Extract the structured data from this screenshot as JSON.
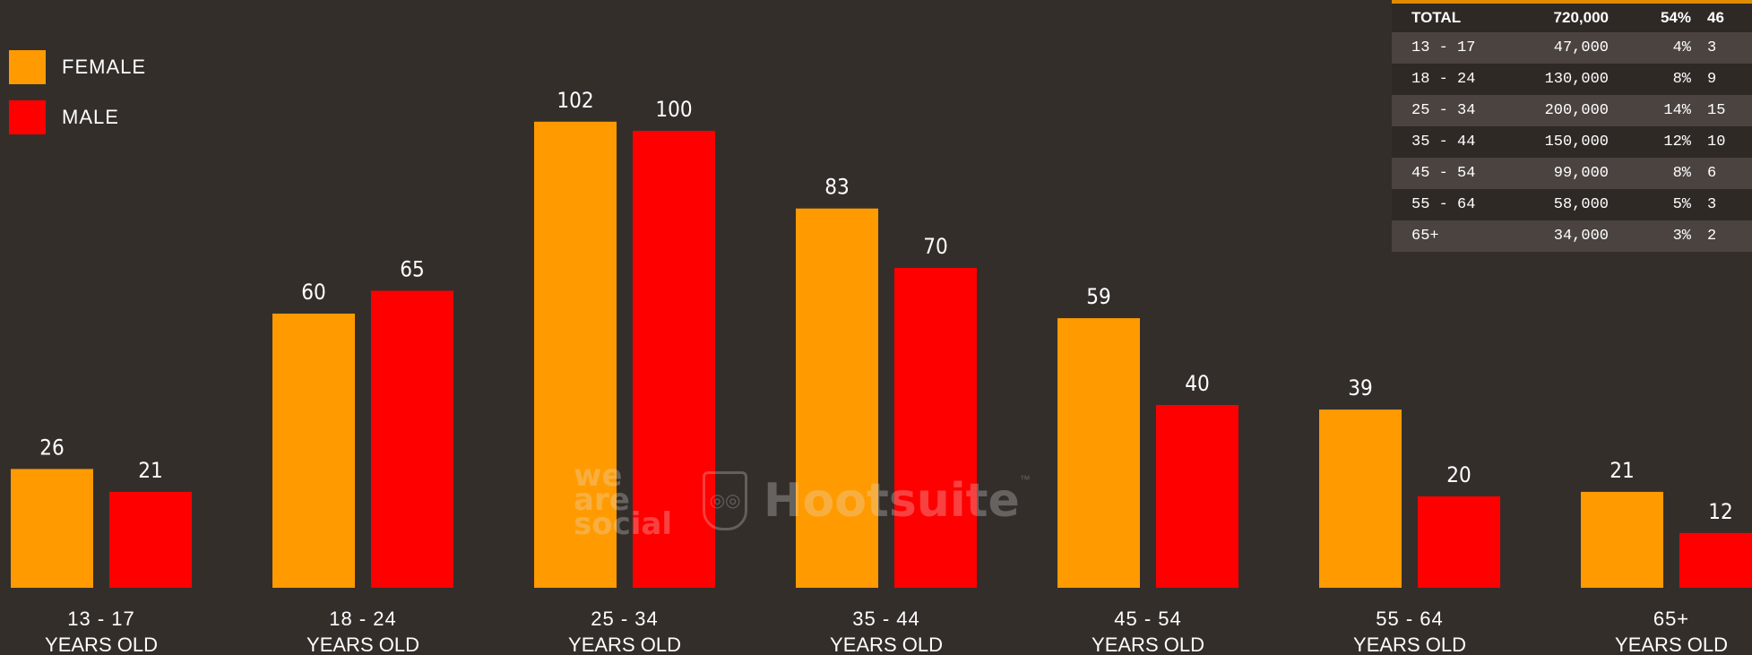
{
  "legend": {
    "female_label": "FEMALE",
    "male_label": "MALE",
    "female_color": "#ff9a00",
    "male_color": "#ff0000"
  },
  "chart_data": {
    "type": "bar",
    "categories": [
      "13 - 17",
      "18 - 24",
      "25 - 34",
      "35 - 44",
      "45 - 54",
      "55 - 64",
      "65+"
    ],
    "category_sublabel": "YEARS OLD",
    "series": [
      {
        "name": "FEMALE",
        "color": "#ff9a00",
        "values": [
          26,
          60,
          102,
          83,
          59,
          39,
          21
        ]
      },
      {
        "name": "MALE",
        "color": "#ff0000",
        "values": [
          21,
          65,
          100,
          70,
          40,
          20,
          12
        ]
      }
    ],
    "title": "",
    "xlabel": "",
    "ylabel": "",
    "ylim": [
      0,
      102
    ],
    "grid": false,
    "legend_position": "top-left"
  },
  "table": {
    "header": [
      "TOTAL",
      "720,000",
      "54%",
      "46"
    ],
    "rows": [
      [
        "13 - 17",
        "47,000",
        "4%",
        "3"
      ],
      [
        "18 - 24",
        "130,000",
        "8%",
        "9"
      ],
      [
        "25 - 34",
        "200,000",
        "14%",
        "15"
      ],
      [
        "35 - 44",
        "150,000",
        "12%",
        "10"
      ],
      [
        "45 - 54",
        "99,000",
        "8%",
        "6"
      ],
      [
        "55 - 64",
        "58,000",
        "5%",
        "3"
      ],
      [
        "65+",
        "34,000",
        "3%",
        "2"
      ]
    ]
  },
  "watermark": {
    "we": "we",
    "are": "are",
    "social": "social",
    "brand": "Hootsuite",
    "tm": "™",
    "owl_icon": "owl-icon"
  }
}
